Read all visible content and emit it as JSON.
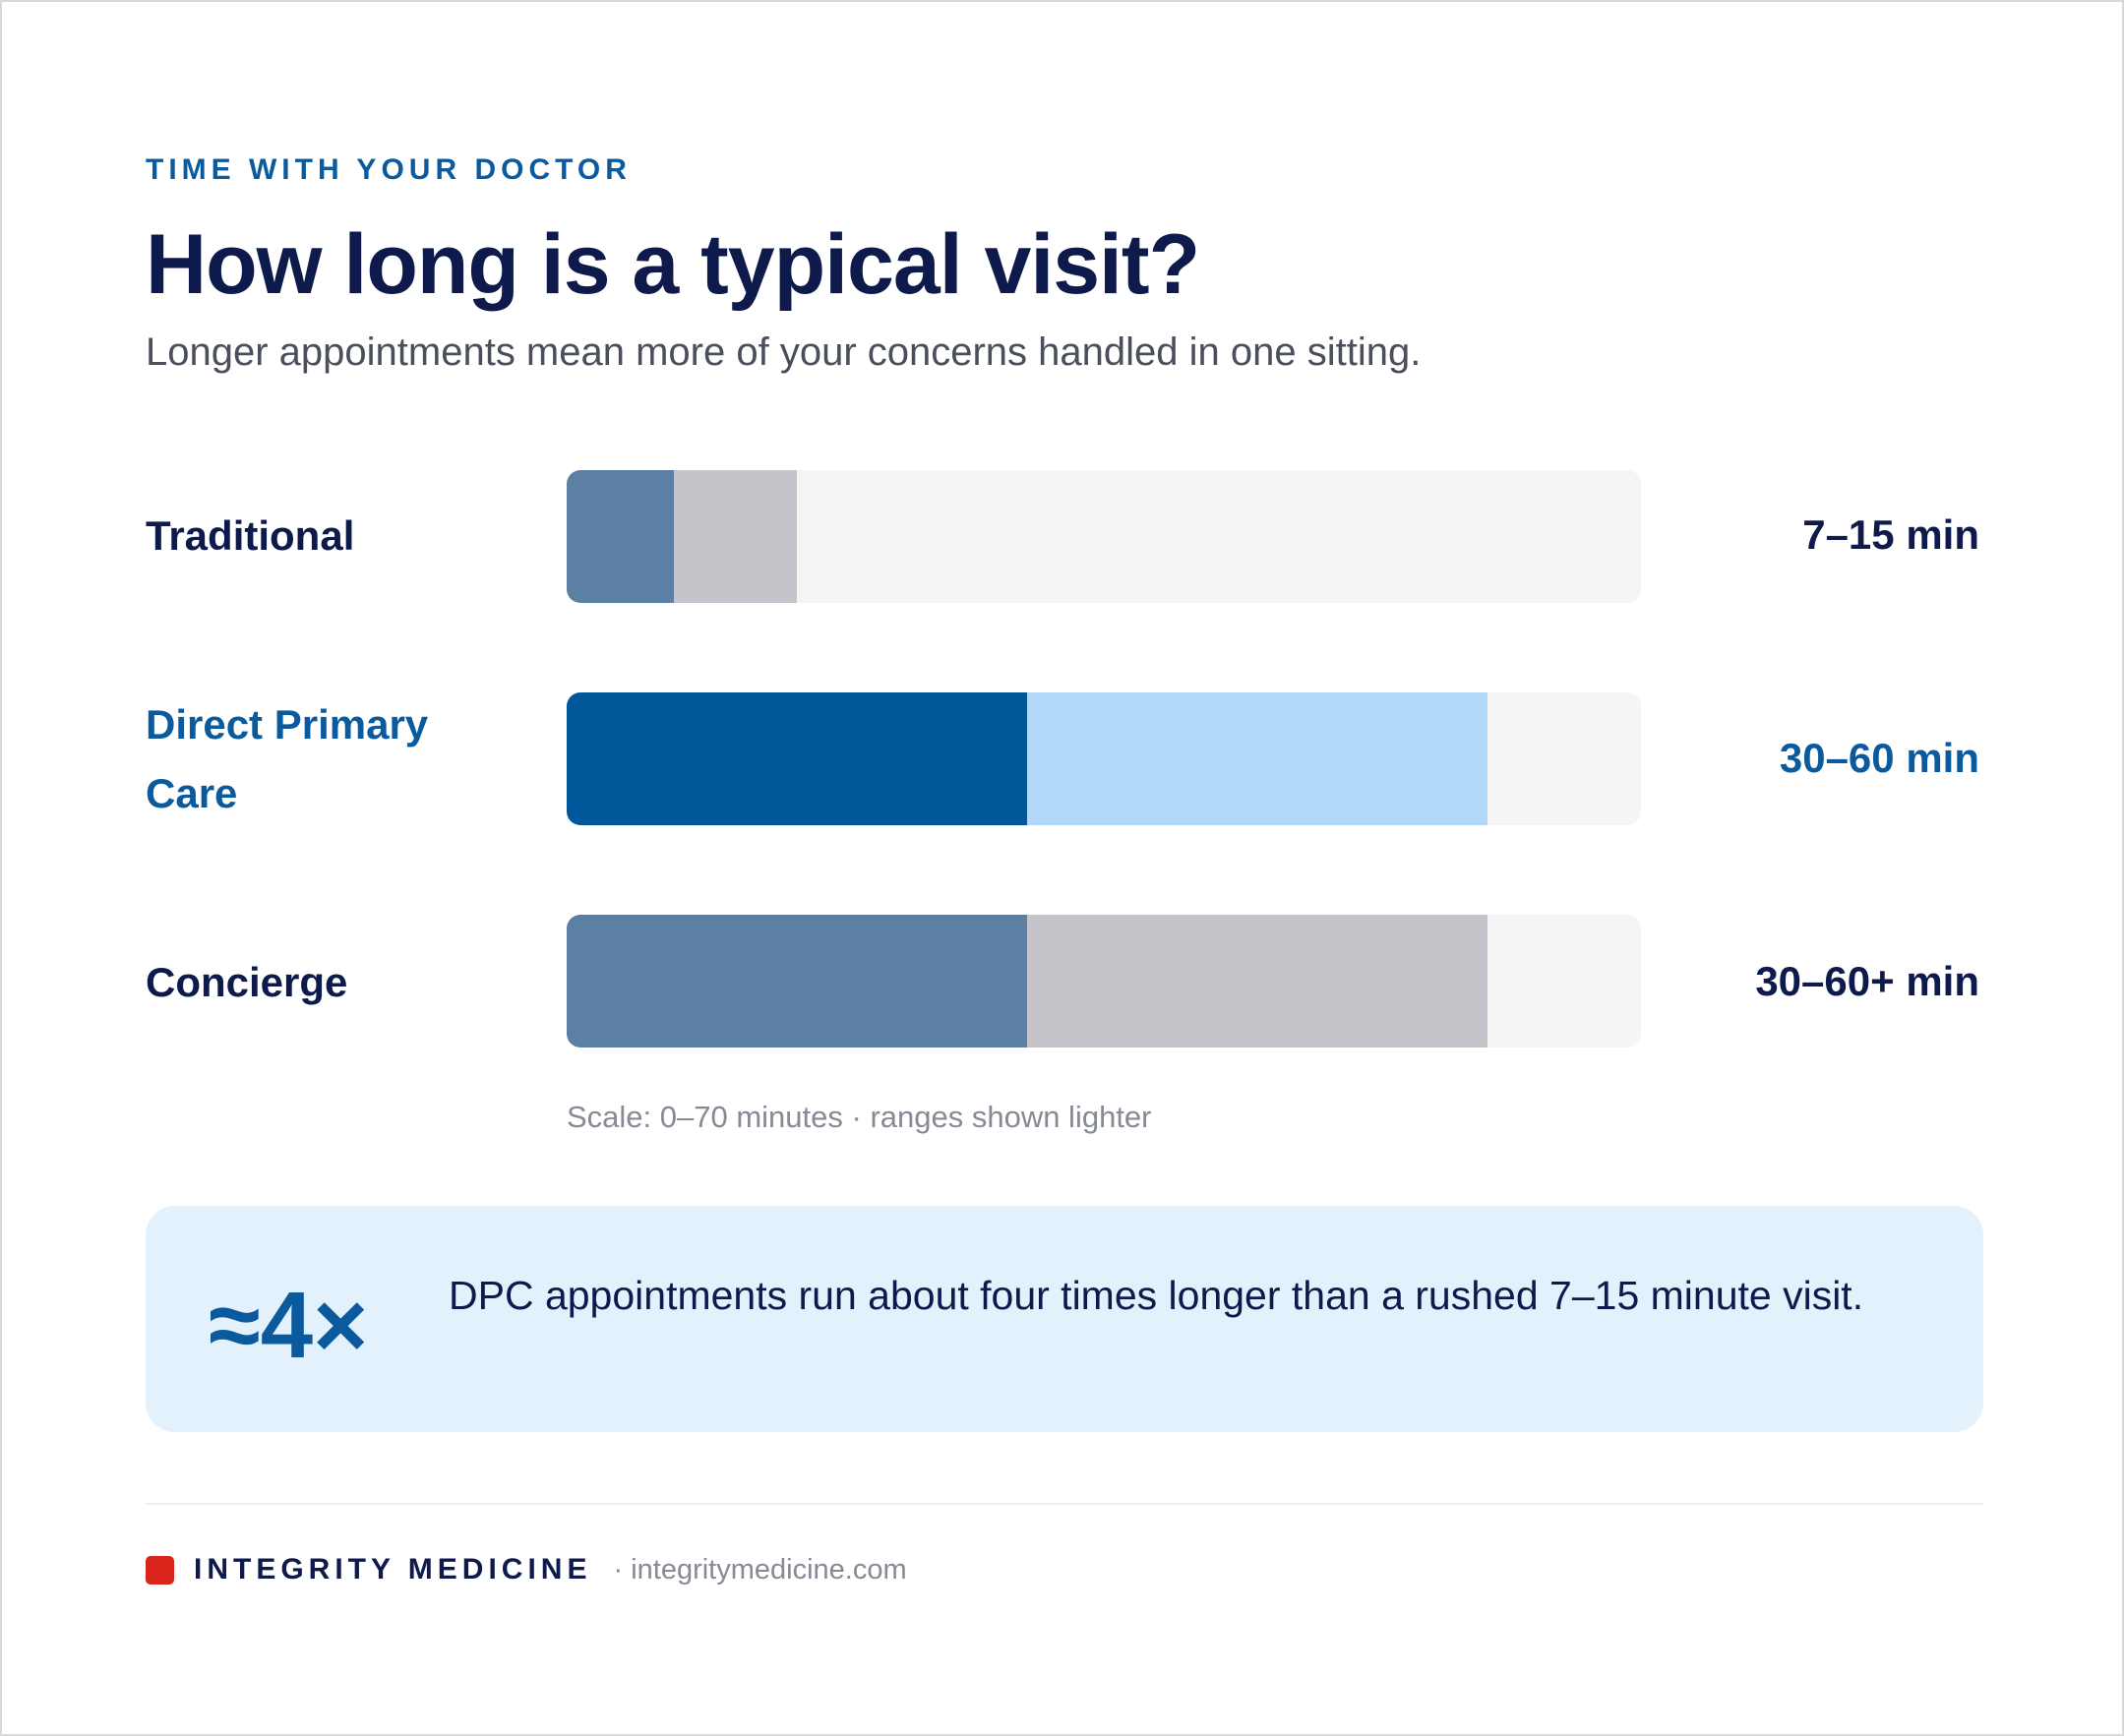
{
  "header": {
    "eyebrow": "TIME WITH YOUR DOCTOR",
    "title": "How long is a typical visit?",
    "subtitle": "Longer appointments mean more of your concerns handled in one sitting."
  },
  "chart_data": {
    "type": "bar",
    "orientation": "horizontal",
    "stacked_range": true,
    "xlim": [
      0,
      70
    ],
    "unit": "minutes",
    "grid": false,
    "categories": [
      "Traditional",
      "Direct Primary Care",
      "Concierge"
    ],
    "series": [
      {
        "values": [
          7,
          30,
          30
        ]
      },
      {
        "values": [
          15,
          60,
          60
        ]
      }
    ],
    "bars": [
      {
        "label": "Traditional",
        "min": 7,
        "max": 15,
        "value_label": "7–15 min",
        "highlight": false,
        "base_color": "#5b80a3",
        "range_color": "#c4c4ca"
      },
      {
        "label": "Direct Primary Care",
        "min": 30,
        "max": 60,
        "value_label": "30–60 min",
        "highlight": true,
        "base_color": "#00589b",
        "range_color": "#b1d8f8"
      },
      {
        "label": "Concierge",
        "min": 30,
        "max": 60,
        "value_label": "30–60+ min",
        "highlight": false,
        "base_color": "#5b80a3",
        "range_color": "#c4c4ca"
      }
    ],
    "track_color": "#f5f5f5",
    "scale_note": "Scale: 0–70 minutes · ranges shown lighter"
  },
  "callout": {
    "stat": "≈4×",
    "text": "DPC appointments run about four times longer than a rushed 7–15 minute visit."
  },
  "footer": {
    "brand": "INTEGRITY MEDICINE",
    "url": "· integritymedicine.com",
    "brand_color": "#d9241c"
  }
}
